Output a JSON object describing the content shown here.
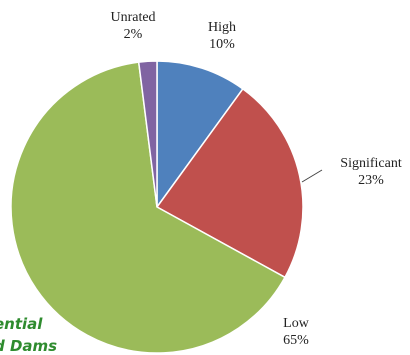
{
  "chart_data": {
    "type": "pie",
    "slices": [
      {
        "label": "High",
        "pct_label": "10%",
        "value": 10,
        "color": "#4f81bd"
      },
      {
        "label": "Significant",
        "pct_label": "23%",
        "value": 23,
        "color": "#c0504d"
      },
      {
        "label": "Low",
        "pct_label": "65%",
        "value": 65,
        "color": "#9bbb59"
      },
      {
        "label": "Unrated",
        "pct_label": "2%",
        "value": 2,
        "color": "#8064a2"
      }
    ]
  },
  "caption": {
    "line1": "ential",
    "line2": "d Dams"
  }
}
